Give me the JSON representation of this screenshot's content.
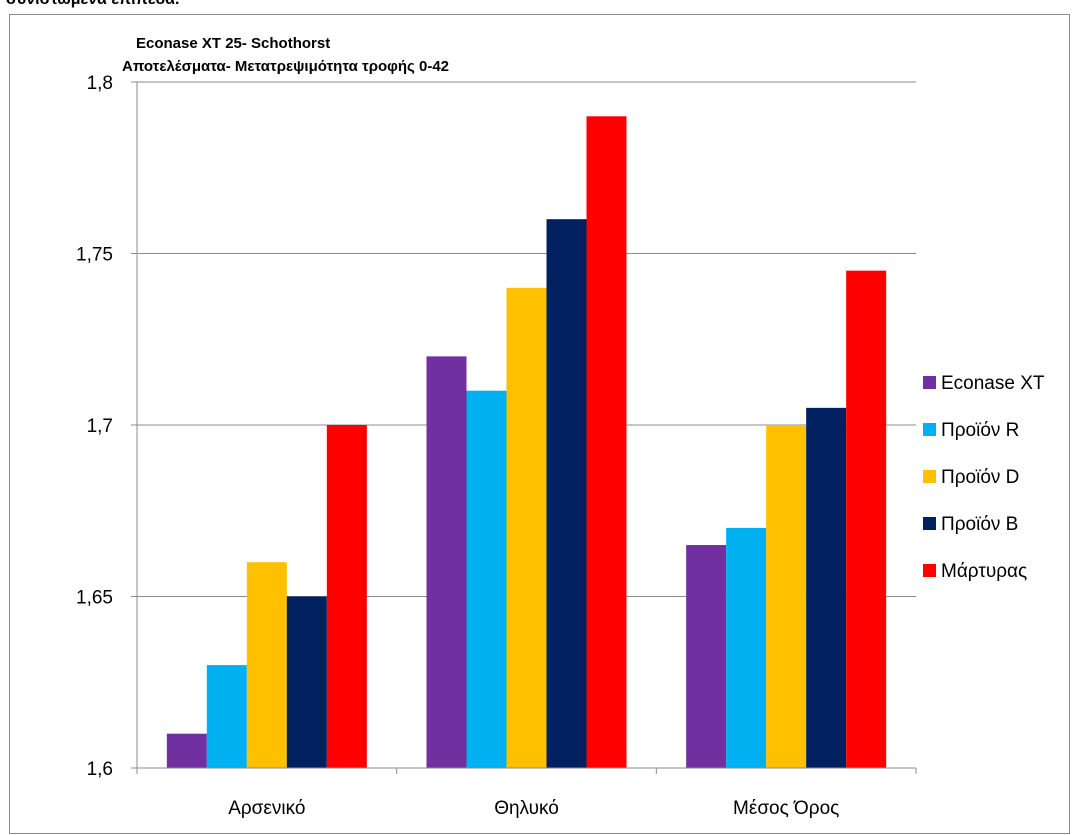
{
  "doc_heading": "συνιστώμενα επίπεδα.",
  "chart_data": {
    "type": "bar",
    "title": "Econase XT 25- Schothorst",
    "subtitle": "Αποτελέσματα- Μετατρεψιμότητα τροφής 0-42",
    "categories": [
      "Αρσενικό",
      "Θηλυκό",
      "Μέσος Όρος"
    ],
    "series": [
      {
        "name": "Econase XT",
        "color": "#7030a0",
        "values": [
          1.61,
          1.72,
          1.665
        ]
      },
      {
        "name": "Προϊόν R",
        "color": "#00b0f0",
        "values": [
          1.63,
          1.71,
          1.67
        ]
      },
      {
        "name": "Προϊόν D",
        "color": "#ffc000",
        "values": [
          1.66,
          1.74,
          1.7
        ]
      },
      {
        "name": "Προϊόν B",
        "color": "#002060",
        "values": [
          1.65,
          1.76,
          1.705
        ]
      },
      {
        "name": "Μάρτυρας",
        "color": "#ff0000",
        "values": [
          1.7,
          1.79,
          1.745
        ]
      }
    ],
    "ylim": [
      1.6,
      1.8
    ],
    "yticks": [
      "1,6",
      "1,65",
      "1,7",
      "1,75",
      "1,8"
    ],
    "grid": true,
    "legend_position": "right"
  }
}
